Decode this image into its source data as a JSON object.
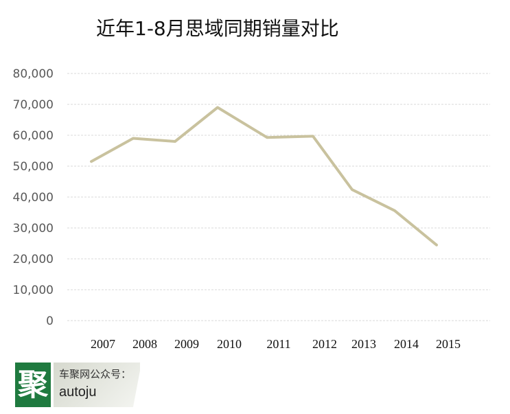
{
  "chart_data": {
    "type": "line",
    "title": "近年1-8月思域同期销量对比",
    "categories": [
      "2007",
      "2008",
      "2009",
      "2010",
      "2011",
      "2012",
      "2013",
      "2014",
      "2015"
    ],
    "series": [
      {
        "values": [
          51500,
          59000,
          58000,
          69000,
          59300,
          59700,
          42400,
          35600,
          24500
        ],
        "color": "#c9c29e"
      }
    ],
    "ylim": [
      0,
      80000
    ],
    "yticks": [
      0,
      10000,
      20000,
      30000,
      40000,
      50000,
      60000,
      70000,
      80000
    ],
    "ytick_labels": [
      "0",
      "10,000",
      "20,000",
      "30,000",
      "40,000",
      "50,000",
      "60,000",
      "70,000",
      "80,000"
    ],
    "grid": true,
    "grid_color": "#d9d9d9",
    "legend": false
  },
  "watermark": {
    "mark_char": "聚",
    "line1": "车聚网公众号：",
    "line2": "autoju",
    "mark_color": "#1f7a3f"
  }
}
